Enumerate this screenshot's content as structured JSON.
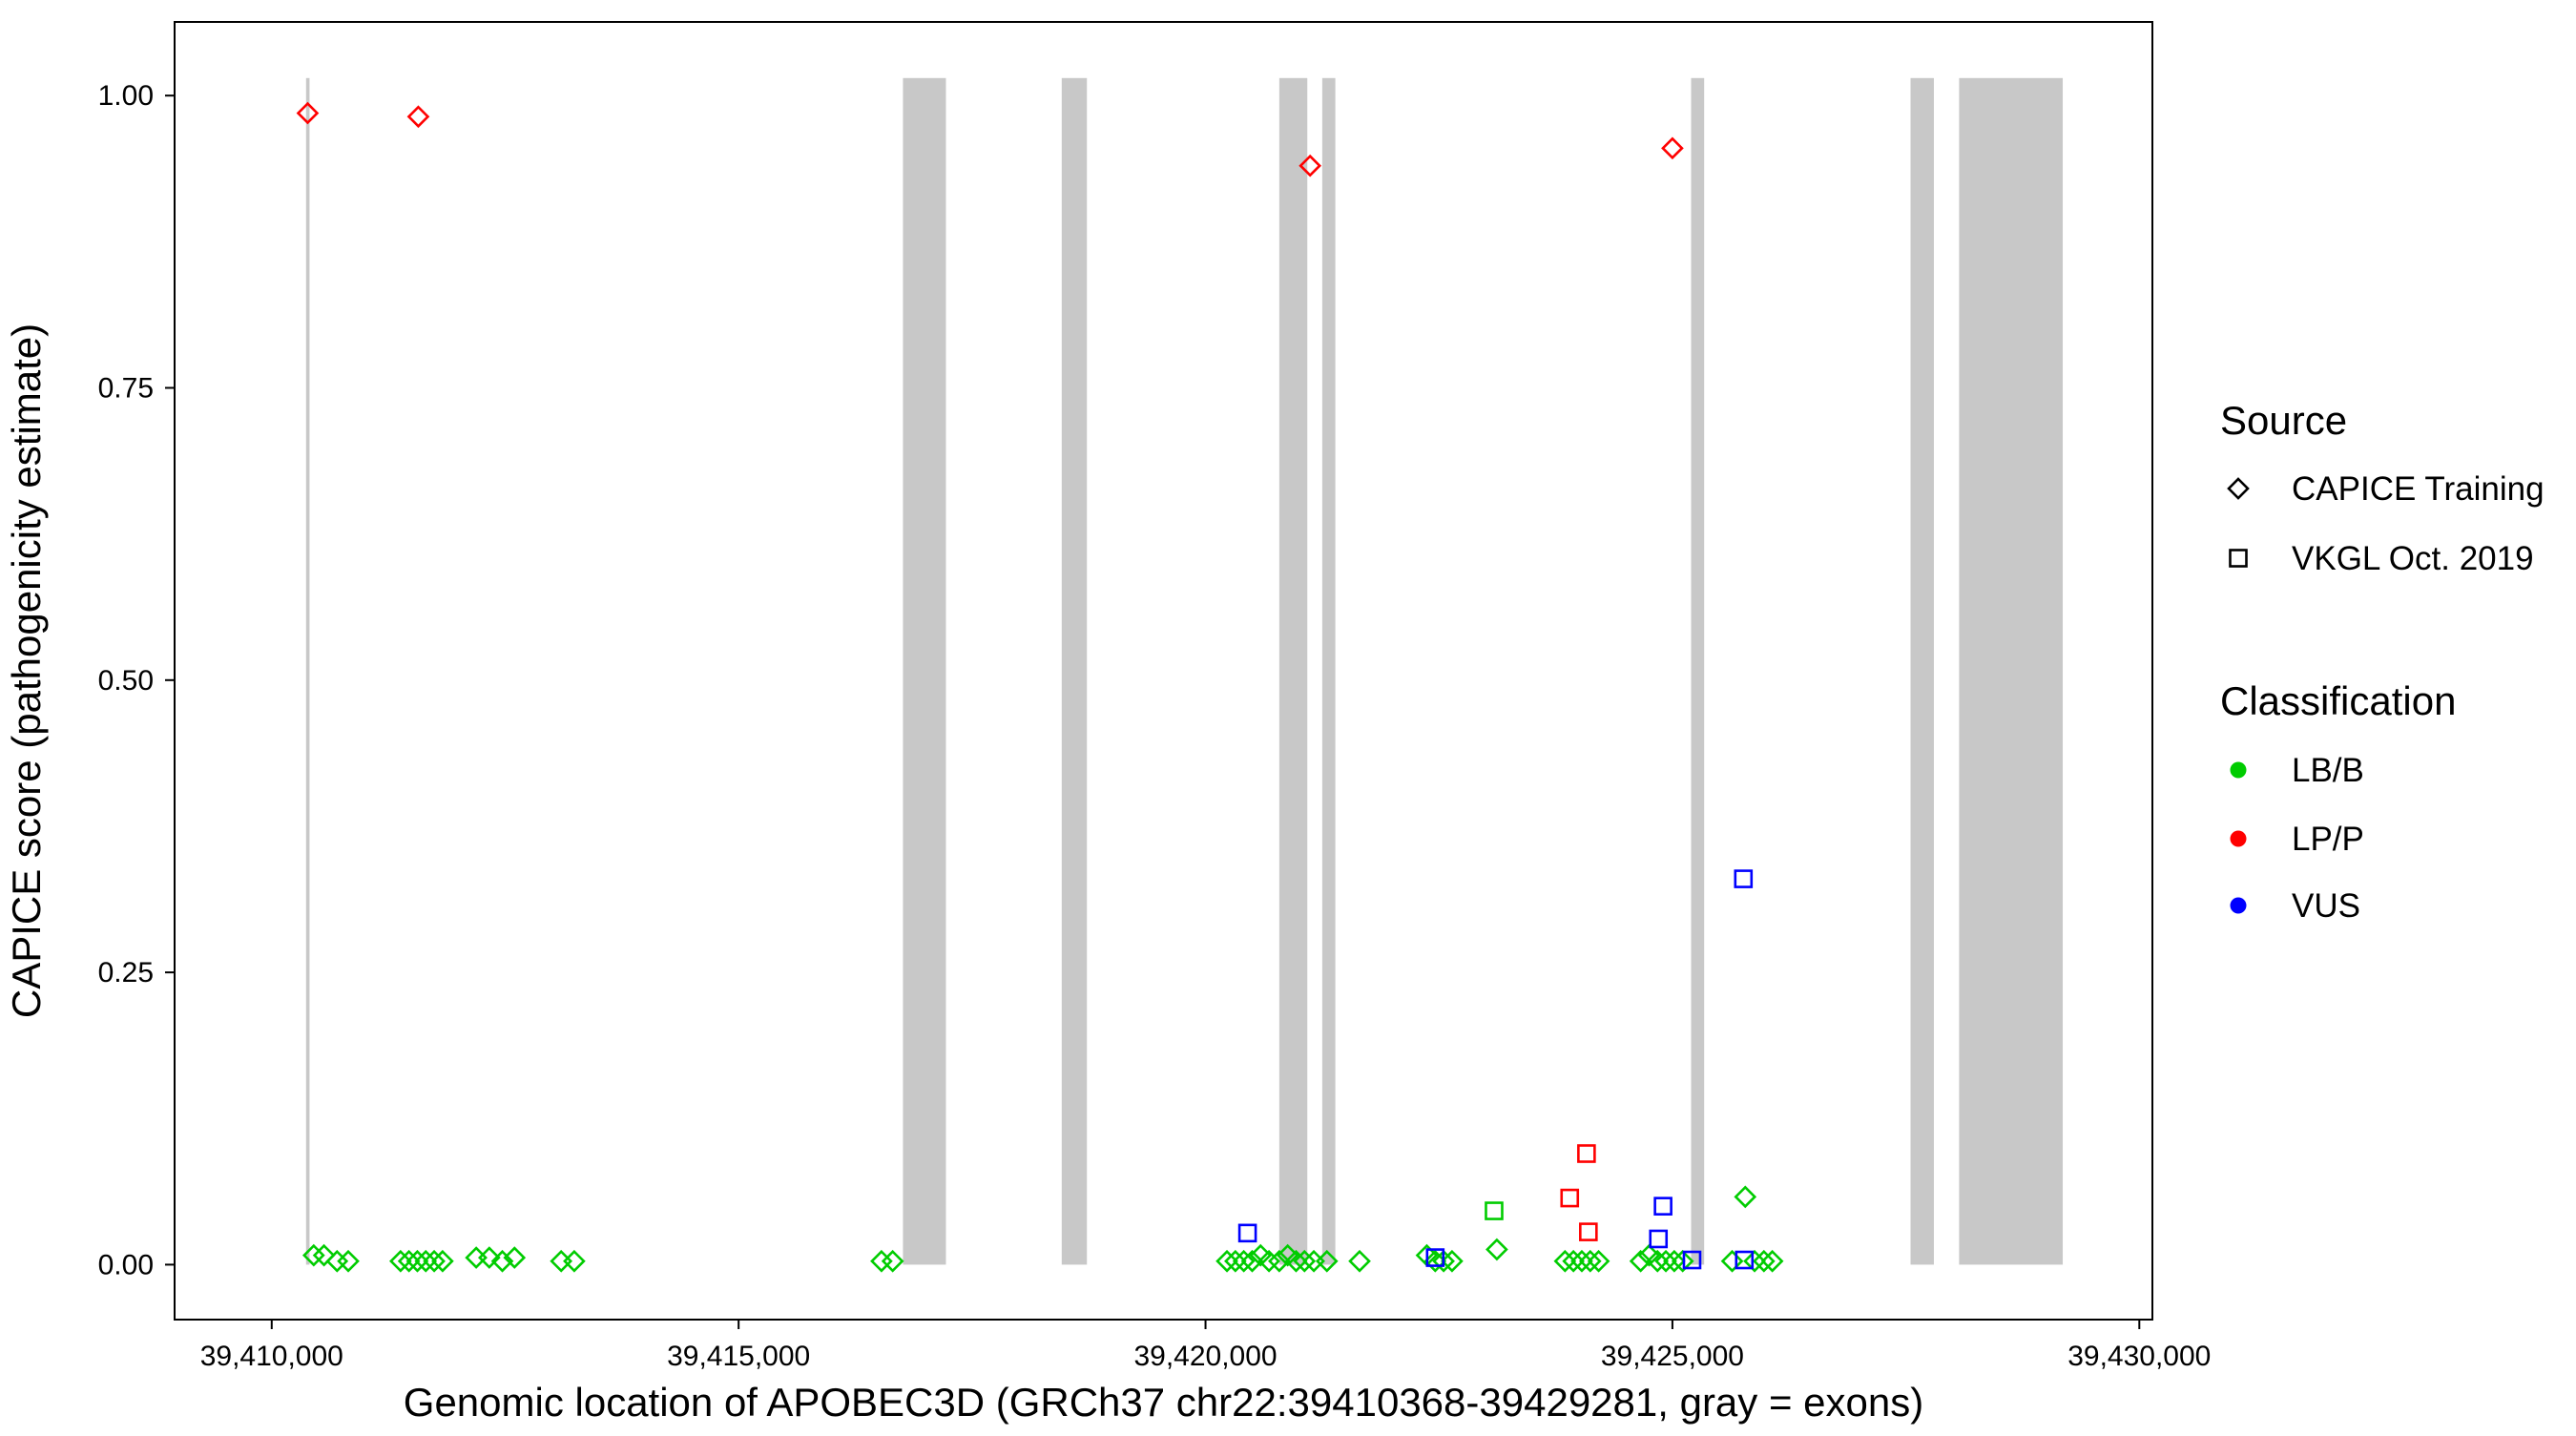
{
  "chart_data": {
    "type": "scatter",
    "xlabel": "Genomic location of APOBEC3D (GRCh37 chr22:39410368-39429281, gray = exons)",
    "ylabel": "CAPICE score (pathogenicity estimate)",
    "xlim": [
      39408960,
      39430140
    ],
    "ylim": [
      -0.047,
      1.063
    ],
    "grid": "off",
    "x_ticks": [
      {
        "value": 39410000,
        "label": "39,410,000"
      },
      {
        "value": 39415000,
        "label": "39,415,000"
      },
      {
        "value": 39420000,
        "label": "39,420,000"
      },
      {
        "value": 39425000,
        "label": "39,425,000"
      },
      {
        "value": 39430000,
        "label": "39,430,000"
      }
    ],
    "y_ticks": [
      {
        "value": 0.0,
        "label": "0.00"
      },
      {
        "value": 0.25,
        "label": "0.25"
      },
      {
        "value": 0.5,
        "label": "0.50"
      },
      {
        "value": 0.75,
        "label": "0.75"
      },
      {
        "value": 1.0,
        "label": "1.00"
      }
    ],
    "colors": {
      "exon": "#C8C8C8",
      "lbb": "#00CC00",
      "lpp": "#FF0000",
      "vus": "#0000FF",
      "axis": "#000000",
      "background": "#FFFFFF"
    },
    "exon_ymin": 0,
    "exon_ymax": 1.015,
    "exons": [
      [
        39410368,
        39410405
      ],
      [
        39416760,
        39417220
      ],
      [
        39418460,
        39418730
      ],
      [
        39420790,
        39421090
      ],
      [
        39421250,
        39421390
      ],
      [
        39425200,
        39425340
      ],
      [
        39427550,
        39427800
      ],
      [
        39428070,
        39429180
      ]
    ],
    "series": [
      {
        "key": "capice-training-lbb",
        "source": "CAPICE Training",
        "classification": "LB/B",
        "shape": "diamond",
        "color": "#00CC00",
        "points": [
          [
            39410450,
            0.008
          ],
          [
            39410560,
            0.008
          ],
          [
            39410700,
            0.003
          ],
          [
            39410820,
            0.003
          ],
          [
            39411380,
            0.003
          ],
          [
            39411470,
            0.003
          ],
          [
            39411560,
            0.003
          ],
          [
            39411650,
            0.003
          ],
          [
            39411740,
            0.003
          ],
          [
            39411830,
            0.003
          ],
          [
            39412190,
            0.006
          ],
          [
            39412330,
            0.006
          ],
          [
            39412470,
            0.003
          ],
          [
            39412600,
            0.006
          ],
          [
            39413100,
            0.003
          ],
          [
            39413240,
            0.003
          ],
          [
            39416530,
            0.003
          ],
          [
            39416650,
            0.003
          ],
          [
            39420230,
            0.003
          ],
          [
            39420320,
            0.003
          ],
          [
            39420410,
            0.003
          ],
          [
            39420500,
            0.003
          ],
          [
            39420590,
            0.008
          ],
          [
            39420680,
            0.003
          ],
          [
            39420790,
            0.003
          ],
          [
            39420880,
            0.008
          ],
          [
            39420970,
            0.003
          ],
          [
            39421060,
            0.003
          ],
          [
            39421160,
            0.003
          ],
          [
            39421300,
            0.003
          ],
          [
            39421650,
            0.003
          ],
          [
            39422370,
            0.008
          ],
          [
            39422460,
            0.003
          ],
          [
            39422550,
            0.003
          ],
          [
            39422640,
            0.003
          ],
          [
            39423120,
            0.013
          ],
          [
            39423850,
            0.003
          ],
          [
            39423940,
            0.003
          ],
          [
            39424030,
            0.003
          ],
          [
            39424120,
            0.003
          ],
          [
            39424210,
            0.003
          ],
          [
            39424660,
            0.003
          ],
          [
            39424750,
            0.008
          ],
          [
            39424840,
            0.003
          ],
          [
            39424930,
            0.003
          ],
          [
            39425020,
            0.003
          ],
          [
            39425110,
            0.003
          ],
          [
            39425640,
            0.003
          ],
          [
            39425780,
            0.058
          ],
          [
            39425880,
            0.003
          ],
          [
            39425980,
            0.003
          ],
          [
            39426070,
            0.003
          ]
        ]
      },
      {
        "key": "capice-training-lpp",
        "source": "CAPICE Training",
        "classification": "LP/P",
        "shape": "diamond",
        "color": "#FF0000",
        "points": [
          [
            39410385,
            0.985
          ],
          [
            39411570,
            0.982
          ],
          [
            39421120,
            0.94
          ],
          [
            39425000,
            0.955
          ]
        ]
      },
      {
        "key": "vkgl-lbb",
        "source": "VKGL Oct. 2019",
        "classification": "LB/B",
        "shape": "square",
        "color": "#00CC00",
        "points": [
          [
            39423090,
            0.046
          ]
        ]
      },
      {
        "key": "vkgl-lpp",
        "source": "VKGL Oct. 2019",
        "classification": "LP/P",
        "shape": "square",
        "color": "#FF0000",
        "points": [
          [
            39424080,
            0.095
          ],
          [
            39423900,
            0.057
          ],
          [
            39424100,
            0.028
          ]
        ]
      },
      {
        "key": "vkgl-vus",
        "source": "VKGL Oct. 2019",
        "classification": "VUS",
        "shape": "square",
        "color": "#0000FF",
        "points": [
          [
            39420450,
            0.027
          ],
          [
            39424900,
            0.05
          ],
          [
            39425760,
            0.33
          ],
          [
            39424850,
            0.022
          ],
          [
            39422460,
            0.006
          ],
          [
            39425210,
            0.004
          ],
          [
            39425770,
            0.004
          ]
        ]
      }
    ],
    "legend": {
      "position": "right",
      "source_title": "Source",
      "source_items": [
        {
          "label": "CAPICE Training",
          "shape": "diamond"
        },
        {
          "label": "VKGL Oct. 2019",
          "shape": "square"
        }
      ],
      "classification_title": "Classification",
      "classification_items": [
        {
          "label": "LB/B",
          "color": "#00CC00"
        },
        {
          "label": "LP/P",
          "color": "#FF0000"
        },
        {
          "label": "VUS",
          "color": "#0000FF"
        }
      ]
    }
  }
}
